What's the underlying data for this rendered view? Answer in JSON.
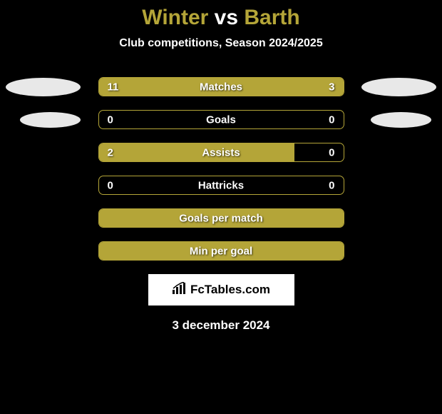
{
  "title": {
    "player1": "Winter",
    "vs": "vs",
    "player2": "Barth"
  },
  "subtitle": "Club competitions, Season 2024/2025",
  "accent_color": "#b4a538",
  "text_color": "#ffffff",
  "background_color": "#000000",
  "bars": [
    {
      "label": "Matches",
      "left_val": "11",
      "right_val": "3",
      "left_pct": 75,
      "right_pct": 25,
      "show_values": true
    },
    {
      "label": "Goals",
      "left_val": "0",
      "right_val": "0",
      "left_pct": 0,
      "right_pct": 0,
      "show_values": true
    },
    {
      "label": "Assists",
      "left_val": "2",
      "right_val": "0",
      "left_pct": 80,
      "right_pct": 0,
      "show_values": true
    },
    {
      "label": "Hattricks",
      "left_val": "0",
      "right_val": "0",
      "left_pct": 0,
      "right_pct": 0,
      "show_values": true
    },
    {
      "label": "Goals per match",
      "left_val": "",
      "right_val": "",
      "left_pct": 100,
      "right_pct": 0,
      "show_values": false,
      "full": true
    },
    {
      "label": "Min per goal",
      "left_val": "",
      "right_val": "",
      "left_pct": 100,
      "right_pct": 0,
      "show_values": false,
      "full": true
    }
  ],
  "side_ovals": [
    {
      "row": 0,
      "side": "left",
      "size": "big"
    },
    {
      "row": 0,
      "side": "right",
      "size": "big"
    },
    {
      "row": 1,
      "side": "left",
      "size": "small"
    },
    {
      "row": 1,
      "side": "right",
      "size": "small"
    }
  ],
  "logo_text": "FcTables.com",
  "date_text": "3 december 2024"
}
